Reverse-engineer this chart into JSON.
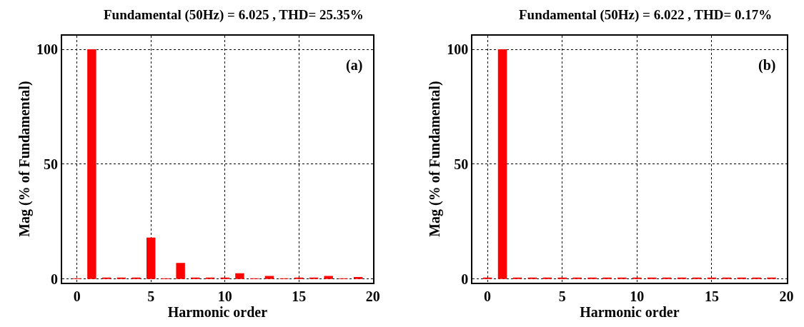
{
  "chart_data": [
    {
      "type": "bar",
      "title": "Fundamental (50Hz) = 6.025 , THD= 25.35%",
      "xlabel": "Harmonic order",
      "ylabel": "Mag (% of Fundamental)",
      "annotations": [
        "(a)"
      ],
      "x": [
        0,
        1,
        2,
        3,
        4,
        5,
        6,
        7,
        8,
        9,
        10,
        11,
        12,
        13,
        14,
        15,
        16,
        17,
        18,
        19
      ],
      "values": [
        0.1,
        100,
        0.3,
        0.3,
        0.3,
        18,
        0.1,
        7,
        0.3,
        0.3,
        0.3,
        2.5,
        0.1,
        1.3,
        0.1,
        0.3,
        0.3,
        1.3,
        0.1,
        0.8
      ],
      "color": "#ff0000",
      "xlim": [
        -1,
        20
      ],
      "ylim": [
        -1.5,
        106
      ],
      "xticks": [
        0,
        5,
        10,
        15,
        20
      ],
      "yticks": [
        0,
        50,
        100
      ],
      "grid": true
    },
    {
      "type": "bar",
      "title": "Fundamental (50Hz) = 6.022 , THD= 0.17%",
      "xlabel": "Harmonic order",
      "ylabel": "Mag (% of Fundamental)",
      "annotations": [
        "(b)"
      ],
      "x": [
        0,
        1,
        2,
        3,
        4,
        5,
        6,
        7,
        8,
        9,
        10,
        11,
        12,
        13,
        14,
        15,
        16,
        17,
        18,
        19
      ],
      "values": [
        0.3,
        100,
        0.3,
        0.3,
        0.3,
        0.3,
        0.3,
        0.3,
        0.3,
        0.3,
        0.3,
        0.3,
        0.3,
        0.3,
        0.3,
        0.3,
        0.3,
        0.3,
        0.3,
        0.3
      ],
      "color": "#ff0000",
      "xlim": [
        -1,
        20
      ],
      "ylim": [
        -1.5,
        106
      ],
      "xticks": [
        0,
        5,
        10,
        15,
        20
      ],
      "yticks": [
        0,
        50,
        100
      ],
      "grid": true
    }
  ]
}
